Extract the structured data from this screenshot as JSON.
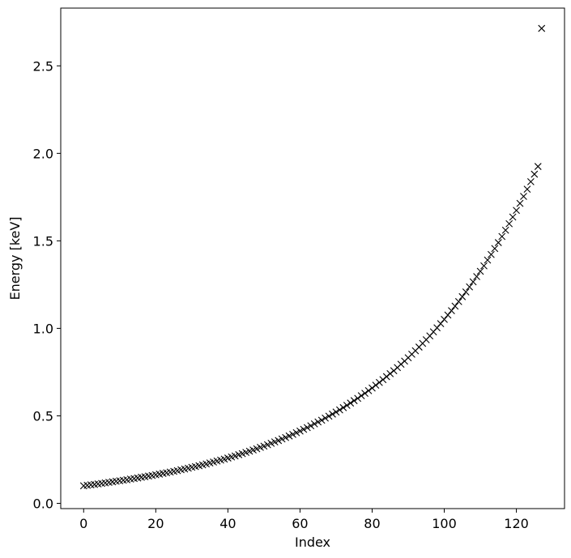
{
  "chart_data": {
    "type": "scatter",
    "xlabel": "Index",
    "ylabel": "Energy [keV]",
    "xlim": [
      -6.35,
      133.35
    ],
    "ylim": [
      -0.03,
      2.83
    ],
    "xticks": [
      0,
      20,
      40,
      60,
      80,
      100,
      120
    ],
    "xtick_labels": [
      "0",
      "20",
      "40",
      "60",
      "80",
      "100",
      "120"
    ],
    "yticks": [
      0.0,
      0.5,
      1.0,
      1.5,
      2.0,
      2.5
    ],
    "ytick_labels": [
      "0.0",
      "0.5",
      "1.0",
      "1.5",
      "2.0",
      "2.5"
    ],
    "grid": false,
    "marker": "x",
    "marker_color": "#000000",
    "series": [
      {
        "x_start": 0,
        "x_step": 1,
        "values": [
          0.1,
          0.103,
          0.106,
          0.108,
          0.111,
          0.114,
          0.117,
          0.12,
          0.123,
          0.126,
          0.129,
          0.132,
          0.135,
          0.139,
          0.142,
          0.145,
          0.149,
          0.152,
          0.156,
          0.159,
          0.163,
          0.167,
          0.171,
          0.175,
          0.179,
          0.183,
          0.187,
          0.192,
          0.196,
          0.201,
          0.206,
          0.21,
          0.215,
          0.22,
          0.225,
          0.231,
          0.236,
          0.242,
          0.247,
          0.253,
          0.259,
          0.265,
          0.271,
          0.278,
          0.284,
          0.291,
          0.298,
          0.305,
          0.312,
          0.32,
          0.327,
          0.335,
          0.343,
          0.351,
          0.359,
          0.368,
          0.376,
          0.385,
          0.394,
          0.404,
          0.413,
          0.423,
          0.433,
          0.443,
          0.454,
          0.465,
          0.475,
          0.487,
          0.498,
          0.51,
          0.522,
          0.534,
          0.547,
          0.56,
          0.573,
          0.587,
          0.6,
          0.615,
          0.629,
          0.644,
          0.659,
          0.675,
          0.691,
          0.707,
          0.724,
          0.741,
          0.758,
          0.776,
          0.795,
          0.813,
          0.832,
          0.852,
          0.872,
          0.893,
          0.914,
          0.935,
          0.957,
          0.98,
          1.003,
          1.027,
          1.051,
          1.076,
          1.101,
          1.127,
          1.153,
          1.181,
          1.208,
          1.237,
          1.266,
          1.296,
          1.326,
          1.357,
          1.39,
          1.422,
          1.456,
          1.49,
          1.525,
          1.561,
          1.598,
          1.636,
          1.674,
          1.714,
          1.754,
          1.795,
          1.838,
          1.881,
          1.925,
          2.714
        ]
      }
    ]
  }
}
